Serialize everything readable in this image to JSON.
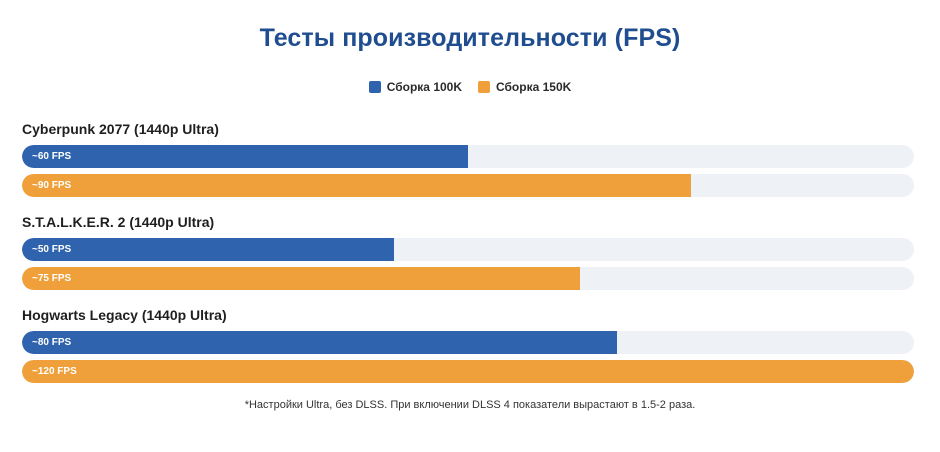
{
  "chart_data": {
    "type": "bar",
    "orientation": "horizontal",
    "title": "Тесты производительности (FPS)",
    "xlim": [
      0,
      120
    ],
    "grid": false,
    "legend_position": "top-center",
    "series": [
      {
        "name": "Сборка 100K",
        "color": "#2f63ad",
        "values": [
          60,
          50,
          80
        ],
        "labels": [
          "~60 FPS",
          "~50 FPS",
          "~80 FPS"
        ]
      },
      {
        "name": "Сборка 150K",
        "color": "#f0a03a",
        "values": [
          90,
          75,
          120
        ],
        "labels": [
          "~90 FPS",
          "~75 FPS",
          "~120 FPS"
        ]
      }
    ],
    "categories": [
      "Cyberpunk 2077 (1440p Ultra)",
      "S.T.A.L.K.E.R. 2 (1440p Ultra)",
      "Hogwarts Legacy (1440p Ultra)"
    ]
  },
  "footnote": "*Настройки Ultra, без DLSS. При включении DLSS 4 показатели вырастают в 1.5-2 раза.",
  "colors": {
    "title": "#1f4d8f",
    "track": "#eef1f6"
  }
}
